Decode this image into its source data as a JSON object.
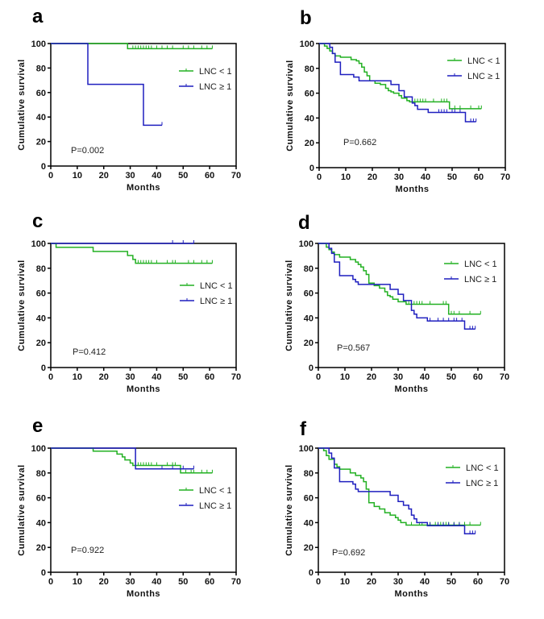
{
  "chart_data": [
    {
      "type": "line",
      "panel_label": "a",
      "xlabel": "Months",
      "ylabel": "Cumulative survival",
      "xlim": [
        0,
        70
      ],
      "ylim": [
        0,
        100
      ],
      "xticks": [
        "0",
        "10",
        "20",
        "30",
        "40",
        "50",
        "60",
        "70"
      ],
      "yticks": [
        "0",
        "20",
        "40",
        "60",
        "80",
        "100"
      ],
      "annotation": "P=0.002",
      "legend": "right",
      "grid": false,
      "series": [
        {
          "name": "LNC < 1",
          "color": "#22b022",
          "steps": [
            [
              0,
              100
            ],
            [
              29,
              95.8
            ]
          ],
          "end": 61,
          "censors": [
            31,
            32,
            33,
            34,
            35,
            36,
            37,
            38,
            40,
            42,
            44,
            46,
            50,
            52,
            54,
            57,
            59,
            61
          ]
        },
        {
          "name": "LNC ≥ 1",
          "color": "#1f1fbf",
          "steps": [
            [
              0,
              100
            ],
            [
              14,
              66.7
            ],
            [
              35,
              33.3
            ]
          ],
          "end": 42,
          "censors": [
            42
          ]
        }
      ]
    },
    {
      "type": "line",
      "panel_label": "b",
      "xlabel": "Months",
      "ylabel": "Cumulative survival",
      "xlim": [
        0,
        70
      ],
      "ylim": [
        0,
        100
      ],
      "xticks": [
        "0",
        "10",
        "20",
        "30",
        "40",
        "50",
        "60",
        "70"
      ],
      "yticks": [
        "0",
        "20",
        "40",
        "60",
        "80",
        "100"
      ],
      "annotation": "P=0.662",
      "legend": "top-right",
      "grid": false,
      "series": [
        {
          "name": "LNC < 1",
          "color": "#22b022",
          "steps": [
            [
              0,
              100
            ],
            [
              2,
              98
            ],
            [
              3,
              96
            ],
            [
              4,
              94
            ],
            [
              5,
              92
            ],
            [
              6,
              90
            ],
            [
              8,
              89
            ],
            [
              12,
              87
            ],
            [
              14,
              86
            ],
            [
              15,
              84
            ],
            [
              16,
              81
            ],
            [
              17,
              77
            ],
            [
              18,
              74
            ],
            [
              19,
              70
            ],
            [
              21,
              68
            ],
            [
              23,
              67
            ],
            [
              25,
              64
            ],
            [
              26,
              62
            ],
            [
              27,
              61
            ],
            [
              28,
              60
            ],
            [
              30,
              58
            ],
            [
              31,
              56
            ],
            [
              33,
              54
            ],
            [
              34,
              53
            ],
            [
              49,
              47.5
            ]
          ],
          "end": 61,
          "censors": [
            36,
            37,
            38,
            39,
            40,
            43,
            46,
            47,
            48,
            51,
            53,
            57,
            60,
            61
          ]
        },
        {
          "name": "LNC ≥ 1",
          "color": "#1f1fbf",
          "steps": [
            [
              0,
              100
            ],
            [
              4,
              97
            ],
            [
              5,
              92
            ],
            [
              6,
              85
            ],
            [
              8,
              75
            ],
            [
              13,
              73
            ],
            [
              15,
              70
            ],
            [
              27,
              67
            ],
            [
              30,
              62
            ],
            [
              32,
              57
            ],
            [
              35,
              52
            ],
            [
              36,
              50
            ],
            [
              37,
              47
            ],
            [
              41,
              44.5
            ],
            [
              55,
              37
            ]
          ],
          "end": 59,
          "censors": [
            45,
            46,
            47,
            48,
            50,
            51,
            53,
            57,
            58,
            59
          ]
        }
      ]
    },
    {
      "type": "line",
      "panel_label": "c",
      "xlabel": "Months",
      "ylabel": "Cumulative survival",
      "xlim": [
        0,
        70
      ],
      "ylim": [
        0,
        100
      ],
      "xticks": [
        "0",
        "10",
        "20",
        "30",
        "40",
        "50",
        "60",
        "70"
      ],
      "yticks": [
        "0",
        "20",
        "40",
        "60",
        "80",
        "100"
      ],
      "annotation": "P=0.412",
      "legend": "right",
      "grid": false,
      "series": [
        {
          "name": "LNC < 1",
          "color": "#22b022",
          "steps": [
            [
              0,
              100
            ],
            [
              2,
              96.8
            ],
            [
              16,
              93.5
            ],
            [
              29,
              90.3
            ],
            [
              31,
              87.1
            ],
            [
              32,
              84
            ]
          ],
          "end": 61,
          "censors": [
            33,
            34,
            35,
            36,
            37,
            38,
            40,
            44,
            46,
            47,
            52,
            54,
            57,
            59,
            61
          ]
        },
        {
          "name": "LNC ≥ 1",
          "color": "#1f1fbf",
          "steps": [
            [
              0,
              100
            ]
          ],
          "end": 54,
          "censors": [
            46,
            50,
            54
          ]
        }
      ]
    },
    {
      "type": "line",
      "panel_label": "d",
      "xlabel": "Months",
      "ylabel": "Cumulative survival",
      "xlim": [
        0,
        70
      ],
      "ylim": [
        0,
        100
      ],
      "xticks": [
        "0",
        "10",
        "20",
        "30",
        "40",
        "50",
        "60",
        "70"
      ],
      "yticks": [
        "0",
        "20",
        "40",
        "60",
        "80",
        "100"
      ],
      "annotation": "P=0.567",
      "legend": "top-right",
      "grid": false,
      "series": [
        {
          "name": "LNC < 1",
          "color": "#22b022",
          "steps": [
            [
              0,
              100
            ],
            [
              3,
              97
            ],
            [
              4,
              95
            ],
            [
              5,
              93
            ],
            [
              6,
              91
            ],
            [
              8,
              89
            ],
            [
              12,
              87
            ],
            [
              14,
              85
            ],
            [
              15,
              83
            ],
            [
              16,
              81
            ],
            [
              17,
              78
            ],
            [
              18,
              75
            ],
            [
              19,
              68
            ],
            [
              21,
              66
            ],
            [
              23,
              64
            ],
            [
              25,
              61
            ],
            [
              26,
              58
            ],
            [
              27,
              57
            ],
            [
              28,
              55
            ],
            [
              30,
              53
            ],
            [
              33,
              51
            ],
            [
              49,
              43
            ]
          ],
          "end": 61,
          "censors": [
            34,
            35,
            36,
            37,
            38,
            39,
            42,
            47,
            48,
            50,
            51,
            53,
            57,
            61
          ]
        },
        {
          "name": "LNC ≥ 1",
          "color": "#1f1fbf",
          "steps": [
            [
              0,
              100
            ],
            [
              4,
              96
            ],
            [
              5,
              92
            ],
            [
              6,
              85
            ],
            [
              8,
              74
            ],
            [
              13,
              71
            ],
            [
              14,
              69
            ],
            [
              15,
              67
            ],
            [
              27,
              63
            ],
            [
              30,
              59
            ],
            [
              32,
              54
            ],
            [
              35,
              46
            ],
            [
              36,
              43
            ],
            [
              37,
              40
            ],
            [
              41,
              37.5
            ],
            [
              55,
              31
            ]
          ],
          "end": 59,
          "censors": [
            42,
            45,
            47,
            49,
            51,
            52,
            54,
            57,
            58,
            59
          ]
        }
      ]
    },
    {
      "type": "line",
      "panel_label": "e",
      "xlabel": "Months",
      "ylabel": "Cumulative survival",
      "xlim": [
        0,
        70
      ],
      "ylim": [
        0,
        100
      ],
      "xticks": [
        "0",
        "10",
        "20",
        "30",
        "40",
        "50",
        "60",
        "70"
      ],
      "yticks": [
        "0",
        "20",
        "40",
        "60",
        "80",
        "100"
      ],
      "annotation": "P=0.922",
      "legend": "right",
      "grid": false,
      "series": [
        {
          "name": "LNC < 1",
          "color": "#22b022",
          "steps": [
            [
              0,
              100
            ],
            [
              16,
              97.6
            ],
            [
              25,
              95.2
            ],
            [
              27,
              92.9
            ],
            [
              28,
              90.5
            ],
            [
              30,
              88
            ],
            [
              31,
              86
            ],
            [
              49,
              80
            ]
          ],
          "end": 61,
          "censors": [
            33,
            34,
            35,
            36,
            37,
            38,
            40,
            44,
            46,
            47,
            51,
            53,
            54,
            57,
            59,
            61
          ]
        },
        {
          "name": "LNC ≥ 1",
          "color": "#1f1fbf",
          "steps": [
            [
              0,
              100
            ],
            [
              32,
              83.3
            ]
          ],
          "end": 54,
          "censors": [
            42,
            46,
            50,
            54
          ]
        }
      ]
    },
    {
      "type": "line",
      "panel_label": "f",
      "xlabel": "Months",
      "ylabel": "Cumulative survival",
      "xlim": [
        0,
        70
      ],
      "ylim": [
        0,
        100
      ],
      "xticks": [
        "0",
        "10",
        "20",
        "30",
        "40",
        "50",
        "60",
        "70"
      ],
      "yticks": [
        "0",
        "20",
        "40",
        "60",
        "80",
        "100"
      ],
      "annotation": "P=0.692",
      "legend": "top-right",
      "grid": false,
      "series": [
        {
          "name": "LNC < 1",
          "color": "#22b022",
          "steps": [
            [
              0,
              100
            ],
            [
              2,
              98
            ],
            [
              3,
              94
            ],
            [
              4,
              91
            ],
            [
              6,
              87
            ],
            [
              7,
              85
            ],
            [
              8,
              83
            ],
            [
              12,
              80
            ],
            [
              14,
              78
            ],
            [
              16,
              76
            ],
            [
              17,
              73
            ],
            [
              18,
              67
            ],
            [
              19,
              56
            ],
            [
              21,
              53
            ],
            [
              23,
              51
            ],
            [
              25,
              48
            ],
            [
              27,
              46
            ],
            [
              29,
              44
            ],
            [
              30,
              42
            ],
            [
              31,
              40
            ],
            [
              33,
              38
            ]
          ],
          "end": 61,
          "censors": [
            35,
            38,
            39,
            42,
            44,
            45,
            46,
            47,
            48,
            49,
            51,
            53,
            55,
            57,
            61
          ]
        },
        {
          "name": "LNC ≥ 1",
          "color": "#1f1fbf",
          "steps": [
            [
              0,
              100
            ],
            [
              4,
              96
            ],
            [
              5,
              92
            ],
            [
              6,
              84
            ],
            [
              8,
              73
            ],
            [
              13,
              71
            ],
            [
              14,
              67
            ],
            [
              15,
              65
            ],
            [
              27,
              62
            ],
            [
              30,
              57
            ],
            [
              32,
              54
            ],
            [
              34,
              51
            ],
            [
              35,
              46
            ],
            [
              36,
              43
            ],
            [
              37,
              40
            ],
            [
              41,
              37.5
            ],
            [
              55,
              31
            ]
          ],
          "end": 59,
          "censors": [
            42,
            45,
            47,
            49,
            51,
            53,
            57,
            58,
            59
          ]
        }
      ]
    }
  ]
}
